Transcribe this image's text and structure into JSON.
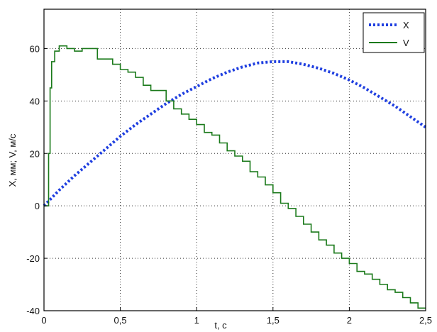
{
  "chart_data": {
    "type": "line",
    "xlabel": "t, c",
    "ylabel": "X, мм; V, м/с",
    "xlim": [
      0,
      2.5
    ],
    "ylim": [
      -40,
      75
    ],
    "grid": true,
    "legend_position": "top-right",
    "x_ticks": [
      0,
      0.5,
      1,
      1.5,
      2,
      2.5
    ],
    "x_tick_labels": [
      "0",
      "0,5",
      "1",
      "1,5",
      "2",
      "2,5"
    ],
    "y_ticks": [
      -40,
      -20,
      0,
      20,
      40,
      60
    ],
    "y_tick_labels": [
      "-40",
      "-20",
      "0",
      "20",
      "40",
      "60"
    ],
    "series": [
      {
        "name": "X",
        "color": "#1f3fe0",
        "style": "dotted",
        "x": [
          0,
          0.1,
          0.2,
          0.3,
          0.4,
          0.5,
          0.6,
          0.7,
          0.8,
          0.9,
          1.0,
          1.1,
          1.2,
          1.3,
          1.4,
          1.5,
          1.6,
          1.7,
          1.8,
          1.9,
          2.0,
          2.1,
          2.2,
          2.3,
          2.4,
          2.5
        ],
        "values": [
          0,
          6,
          11.5,
          16.5,
          21.5,
          26.5,
          31,
          35,
          39,
          42.5,
          45.5,
          48.5,
          51,
          53,
          54.5,
          55,
          55,
          54,
          52.5,
          50.5,
          48,
          45,
          41.5,
          38,
          34,
          30
        ]
      },
      {
        "name": "V",
        "color": "#1b7a1b",
        "style": "solid",
        "x": [
          0,
          0.02,
          0.03,
          0.04,
          0.05,
          0.07,
          0.1,
          0.15,
          0.2,
          0.25,
          0.3,
          0.35,
          0.4,
          0.45,
          0.5,
          0.55,
          0.6,
          0.65,
          0.7,
          0.75,
          0.8,
          0.85,
          0.9,
          0.95,
          1.0,
          1.05,
          1.1,
          1.15,
          1.2,
          1.25,
          1.3,
          1.35,
          1.4,
          1.45,
          1.5,
          1.55,
          1.6,
          1.65,
          1.7,
          1.75,
          1.8,
          1.85,
          1.9,
          1.95,
          2.0,
          2.05,
          2.1,
          2.15,
          2.2,
          2.25,
          2.3,
          2.35,
          2.4,
          2.45,
          2.5
        ],
        "values": [
          0,
          0,
          20,
          45,
          55,
          59,
          61,
          60,
          59,
          60,
          60,
          56,
          56,
          54,
          52,
          51,
          49,
          46,
          44,
          44,
          40,
          37,
          35,
          33,
          31,
          28,
          27,
          24,
          21,
          19,
          17,
          13,
          11,
          8,
          5,
          1,
          -1,
          -4,
          -7,
          -10,
          -13,
          -15,
          -18,
          -20,
          -22,
          -25,
          -26,
          -28,
          -30,
          -32,
          -33,
          -35,
          -37,
          -39,
          -39
        ]
      }
    ]
  }
}
